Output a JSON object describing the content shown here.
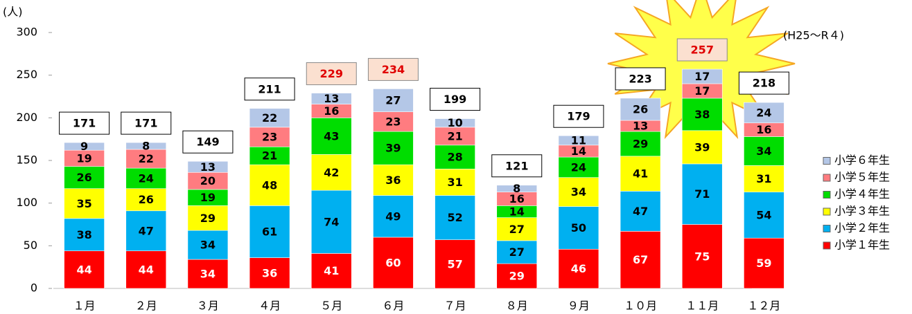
{
  "chart_data": {
    "type": "stacked_bar",
    "y_axis_label": "(人)",
    "annotation": "(H25～R４)",
    "categories": [
      "１月",
      "２月",
      "３月",
      "４月",
      "５月",
      "６月",
      "７月",
      "８月",
      "９月",
      "１０月",
      "１１月",
      "１２月"
    ],
    "series": [
      {
        "name": "小学１年生",
        "color": "#ff0000",
        "label_color": "#ffffff",
        "values": [
          44,
          44,
          34,
          36,
          41,
          60,
          57,
          29,
          46,
          67,
          75,
          59
        ]
      },
      {
        "name": "小学２年生",
        "color": "#00b0f0",
        "label_color": "#000000",
        "values": [
          38,
          47,
          34,
          61,
          74,
          49,
          52,
          27,
          50,
          47,
          71,
          54
        ]
      },
      {
        "name": "小学３年生",
        "color": "#ffff00",
        "label_color": "#000000",
        "values": [
          35,
          26,
          29,
          48,
          42,
          36,
          31,
          27,
          34,
          41,
          39,
          31
        ]
      },
      {
        "name": "小学４年生",
        "color": "#00dd00",
        "label_color": "#000000",
        "values": [
          26,
          24,
          19,
          21,
          43,
          39,
          28,
          14,
          24,
          29,
          38,
          34
        ]
      },
      {
        "name": "小学５年生",
        "color": "#ff7c80",
        "label_color": "#000000",
        "values": [
          19,
          22,
          20,
          23,
          16,
          23,
          21,
          16,
          14,
          13,
          17,
          16
        ]
      },
      {
        "name": "小学６年生",
        "color": "#b4c7e7",
        "label_color": "#000000",
        "values": [
          9,
          8,
          13,
          22,
          13,
          27,
          10,
          8,
          11,
          26,
          17,
          24
        ]
      }
    ],
    "totals": [
      171,
      171,
      149,
      211,
      229,
      234,
      199,
      121,
      179,
      223,
      257,
      218
    ],
    "highlight": [
      false,
      false,
      false,
      false,
      true,
      true,
      false,
      false,
      false,
      false,
      true,
      false
    ],
    "ylim": [
      0,
      300
    ],
    "yticks": [
      0,
      50,
      100,
      150,
      200,
      250,
      300
    ]
  }
}
